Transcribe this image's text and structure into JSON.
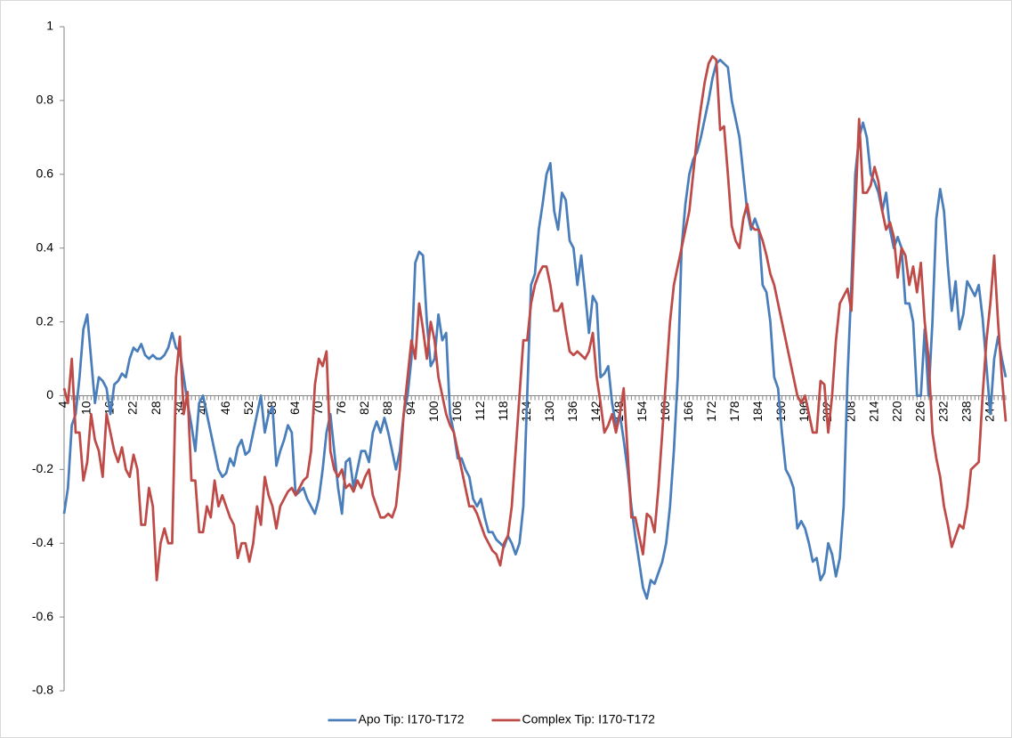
{
  "chart_data": {
    "type": "line",
    "categories": [
      "4",
      null,
      null,
      null,
      null,
      null,
      "10",
      null,
      null,
      null,
      null,
      null,
      "16",
      null,
      null,
      null,
      null,
      null,
      "22",
      null,
      null,
      null,
      null,
      null,
      "28",
      null,
      null,
      null,
      null,
      null,
      "34",
      null,
      null,
      null,
      null,
      null,
      "40",
      null,
      null,
      null,
      null,
      null,
      "46",
      null,
      null,
      null,
      null,
      null,
      "52",
      null,
      null,
      null,
      null,
      null,
      "58",
      null,
      null,
      null,
      null,
      null,
      "64",
      null,
      null,
      null,
      null,
      null,
      "70",
      null,
      null,
      null,
      null,
      null,
      "76",
      null,
      null,
      null,
      null,
      null,
      "82",
      null,
      null,
      null,
      null,
      null,
      "88",
      null,
      null,
      null,
      null,
      null,
      "94",
      null,
      null,
      null,
      null,
      null,
      "100",
      null,
      null,
      null,
      null,
      null,
      "106",
      null,
      null,
      null,
      null,
      null,
      "112",
      null,
      null,
      null,
      null,
      null,
      "118",
      null,
      null,
      null,
      null,
      null,
      "124",
      null,
      null,
      null,
      null,
      null,
      "130",
      null,
      null,
      null,
      null,
      null,
      "136",
      null,
      null,
      null,
      null,
      null,
      "142",
      null,
      null,
      null,
      null,
      null,
      "148",
      null,
      null,
      null,
      null,
      null,
      "154",
      null,
      null,
      null,
      null,
      null,
      "160",
      null,
      null,
      null,
      null,
      null,
      "166",
      null,
      null,
      null,
      null,
      null,
      "172",
      null,
      null,
      null,
      null,
      null,
      "178",
      null,
      null,
      null,
      null,
      null,
      "184",
      null,
      null,
      null,
      null,
      null,
      "190",
      null,
      null,
      null,
      null,
      null,
      "196",
      null,
      null,
      null,
      null,
      null,
      "202",
      null,
      null,
      null,
      null,
      null,
      "208",
      null,
      null,
      null,
      null,
      null,
      "214",
      null,
      null,
      null,
      null,
      null,
      "220",
      null,
      null,
      null,
      null,
      null,
      "226",
      null,
      null,
      null,
      null,
      null,
      "232",
      null,
      null,
      null,
      null,
      null,
      "238",
      null,
      null,
      null,
      null,
      null,
      "244",
      null,
      null,
      null,
      null
    ],
    "series": [
      {
        "name": "Apo Tip: I170-T172",
        "color": "#4a7ebb",
        "values": [
          -0.32,
          -0.25,
          -0.08,
          -0.05,
          0.05,
          0.18,
          0.22,
          0.1,
          -0.02,
          0.05,
          0.04,
          0.02,
          -0.05,
          0.03,
          0.04,
          0.06,
          0.05,
          0.1,
          0.13,
          0.12,
          0.14,
          0.11,
          0.1,
          0.11,
          0.1,
          0.1,
          0.11,
          0.13,
          0.17,
          0.13,
          0.12,
          0.05,
          -0.02,
          -0.08,
          -0.15,
          -0.02,
          0.0,
          -0.05,
          -0.1,
          -0.15,
          -0.2,
          -0.22,
          -0.21,
          -0.17,
          -0.19,
          -0.14,
          -0.12,
          -0.16,
          -0.15,
          -0.1,
          -0.05,
          0.0,
          -0.1,
          -0.05,
          -0.03,
          -0.19,
          -0.15,
          -0.12,
          -0.08,
          -0.1,
          -0.27,
          -0.26,
          -0.25,
          -0.28,
          -0.3,
          -0.32,
          -0.28,
          -0.2,
          -0.1,
          -0.05,
          -0.15,
          -0.25,
          -0.32,
          -0.18,
          -0.17,
          -0.25,
          -0.2,
          -0.15,
          -0.15,
          -0.18,
          -0.1,
          -0.07,
          -0.1,
          -0.06,
          -0.1,
          -0.15,
          -0.2,
          -0.15,
          -0.05,
          0.0,
          0.1,
          0.36,
          0.39,
          0.38,
          0.2,
          0.08,
          0.1,
          0.22,
          0.15,
          0.17,
          -0.05,
          -0.1,
          -0.17,
          -0.17,
          -0.2,
          -0.22,
          -0.28,
          -0.3,
          -0.28,
          -0.33,
          -0.37,
          -0.37,
          -0.39,
          -0.4,
          -0.41,
          -0.38,
          -0.4,
          -0.43,
          -0.4,
          -0.3,
          0.0,
          0.3,
          0.33,
          0.45,
          0.52,
          0.6,
          0.63,
          0.5,
          0.45,
          0.55,
          0.53,
          0.42,
          0.4,
          0.3,
          0.38,
          0.28,
          0.17,
          0.27,
          0.25,
          0.05,
          0.06,
          0.08,
          -0.02,
          -0.08,
          -0.05,
          -0.12,
          -0.2,
          -0.3,
          -0.38,
          -0.45,
          -0.52,
          -0.55,
          -0.5,
          -0.51,
          -0.48,
          -0.45,
          -0.4,
          -0.3,
          -0.15,
          0.05,
          0.4,
          0.52,
          0.6,
          0.64,
          0.66,
          0.7,
          0.75,
          0.8,
          0.86,
          0.9,
          0.91,
          0.9,
          0.89,
          0.8,
          0.75,
          0.7,
          0.6,
          0.5,
          0.45,
          0.48,
          0.45,
          0.3,
          0.28,
          0.2,
          0.05,
          0.02,
          -0.1,
          -0.2,
          -0.22,
          -0.25,
          -0.36,
          -0.34,
          -0.36,
          -0.4,
          -0.45,
          -0.44,
          -0.5,
          -0.48,
          -0.4,
          -0.43,
          -0.49,
          -0.44,
          -0.3,
          0.05,
          0.3,
          0.6,
          0.7,
          0.74,
          0.7,
          0.6,
          0.58,
          0.55,
          0.5,
          0.55,
          0.45,
          0.4,
          0.43,
          0.4,
          0.25,
          0.25,
          0.2,
          0.0,
          0.0,
          0.18,
          0.0,
          0.2,
          0.48,
          0.56,
          0.5,
          0.35,
          0.23,
          0.31,
          0.18,
          0.22,
          0.31,
          0.29,
          0.27,
          0.3,
          0.21,
          0.08,
          -0.05,
          0.1,
          0.16,
          0.1,
          0.05
        ]
      },
      {
        "name": "Complex Tip: I170-T172",
        "color": "#be4b48",
        "values": [
          0.02,
          -0.02,
          0.1,
          -0.1,
          -0.1,
          -0.23,
          -0.18,
          -0.05,
          -0.12,
          -0.15,
          -0.22,
          -0.05,
          -0.1,
          -0.15,
          -0.18,
          -0.14,
          -0.2,
          -0.22,
          -0.16,
          -0.2,
          -0.35,
          -0.35,
          -0.25,
          -0.3,
          -0.5,
          -0.4,
          -0.36,
          -0.4,
          -0.4,
          0.05,
          0.16,
          -0.05,
          0.01,
          -0.23,
          -0.23,
          -0.37,
          -0.37,
          -0.3,
          -0.33,
          -0.23,
          -0.3,
          -0.27,
          -0.3,
          -0.33,
          -0.35,
          -0.44,
          -0.4,
          -0.4,
          -0.45,
          -0.4,
          -0.3,
          -0.35,
          -0.22,
          -0.27,
          -0.3,
          -0.36,
          -0.3,
          -0.28,
          -0.26,
          -0.25,
          -0.27,
          -0.25,
          -0.23,
          -0.22,
          -0.15,
          0.03,
          0.1,
          0.08,
          0.12,
          -0.15,
          -0.2,
          -0.22,
          -0.2,
          -0.25,
          -0.24,
          -0.26,
          -0.23,
          -0.25,
          -0.22,
          -0.2,
          -0.27,
          -0.3,
          -0.33,
          -0.33,
          -0.32,
          -0.33,
          -0.3,
          -0.2,
          -0.05,
          0.05,
          0.15,
          0.1,
          0.25,
          0.18,
          0.1,
          0.2,
          0.15,
          0.05,
          0.0,
          -0.05,
          -0.08,
          -0.1,
          -0.15,
          -0.2,
          -0.25,
          -0.3,
          -0.3,
          -0.32,
          -0.35,
          -0.38,
          -0.4,
          -0.42,
          -0.43,
          -0.46,
          -0.4,
          -0.38,
          -0.3,
          -0.15,
          0.0,
          0.15,
          0.15,
          0.25,
          0.3,
          0.33,
          0.35,
          0.35,
          0.3,
          0.23,
          0.23,
          0.25,
          0.18,
          0.12,
          0.11,
          0.12,
          0.11,
          0.1,
          0.12,
          0.17,
          0.05,
          -0.02,
          -0.1,
          -0.08,
          -0.05,
          -0.1,
          -0.05,
          0.02,
          -0.15,
          -0.33,
          -0.33,
          -0.38,
          -0.43,
          -0.32,
          -0.33,
          -0.37,
          -0.25,
          -0.1,
          0.05,
          0.2,
          0.3,
          0.35,
          0.4,
          0.45,
          0.5,
          0.6,
          0.7,
          0.78,
          0.85,
          0.9,
          0.92,
          0.91,
          0.72,
          0.73,
          0.6,
          0.46,
          0.42,
          0.4,
          0.48,
          0.52,
          0.46,
          0.45,
          0.45,
          0.42,
          0.38,
          0.33,
          0.3,
          0.25,
          0.2,
          0.15,
          0.1,
          0.05,
          0.0,
          -0.02,
          0.0,
          -0.05,
          -0.1,
          -0.1,
          0.04,
          0.03,
          -0.1,
          0.0,
          0.15,
          0.25,
          0.27,
          0.29,
          0.23,
          0.5,
          0.75,
          0.55,
          0.55,
          0.57,
          0.62,
          0.58,
          0.5,
          0.45,
          0.47,
          0.43,
          0.32,
          0.4,
          0.38,
          0.3,
          0.35,
          0.28,
          0.36,
          0.2,
          0.1,
          -0.1,
          -0.17,
          -0.22,
          -0.3,
          -0.35,
          -0.41,
          -0.38,
          -0.35,
          -0.36,
          -0.3,
          -0.2,
          -0.19,
          -0.18,
          0.0,
          0.15,
          0.25,
          0.38,
          0.2,
          0.05,
          -0.07
        ]
      }
    ],
    "ylim": [
      -0.8,
      1
    ],
    "yticks": [
      -0.8,
      -0.6,
      -0.4,
      -0.2,
      0,
      0.2,
      0.4,
      0.6,
      0.8,
      1
    ],
    "grid": false,
    "legend": "bottom"
  }
}
